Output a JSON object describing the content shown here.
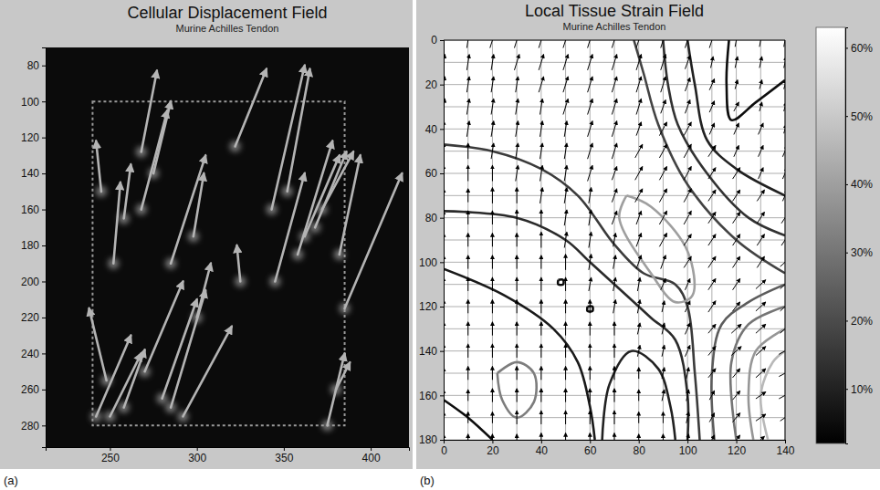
{
  "chart_data": [
    {
      "type": "quiver",
      "title": "Cellular Displacement Field",
      "subtitle": "Murine Achilles Tendon",
      "panel_label": "(a)",
      "xlim": [
        213,
        422
      ],
      "ylim": [
        70,
        292
      ],
      "xticks": [
        250,
        300,
        350,
        400
      ],
      "yticks": [
        80,
        100,
        120,
        140,
        160,
        180,
        200,
        220,
        240,
        260,
        280
      ],
      "color": "#b4b4b4",
      "roi": {
        "x": [
          240,
          385
        ],
        "y": [
          100,
          280
        ]
      },
      "arrows": {
        "x": [
          245,
          252,
          258,
          268,
          275,
          268,
          285,
          298,
          322,
          343,
          352,
          358,
          362,
          368,
          372,
          382,
          242,
          250,
          248,
          258,
          270,
          280,
          285,
          292,
          300,
          325,
          345,
          385,
          375,
          380
        ],
        "y": [
          150,
          190,
          165,
          160,
          140,
          128,
          190,
          175,
          125,
          160,
          150,
          185,
          175,
          170,
          160,
          185,
          275,
          275,
          255,
          270,
          250,
          265,
          270,
          275,
          220,
          200,
          200,
          215,
          280,
          260
        ],
        "u": [
          -3,
          4,
          4,
          15,
          10,
          9,
          20,
          6,
          18,
          19,
          13,
          20,
          20,
          18,
          18,
          12,
          20,
          18,
          -10,
          12,
          22,
          20,
          20,
          28,
          8,
          -2,
          17,
          33,
          10,
          8
        ],
        "v": [
          -28,
          -45,
          -30,
          -55,
          -40,
          -45,
          -60,
          -35,
          -43,
          -80,
          -68,
          -63,
          -45,
          -42,
          -32,
          -55,
          -45,
          -35,
          -40,
          -32,
          -50,
          -55,
          -65,
          -50,
          -30,
          -20,
          -60,
          -75,
          -40,
          -15
        ]
      }
    },
    {
      "type": "contour",
      "title": "Local Tissue Strain Field",
      "subtitle": "Murine Achilles Tendon",
      "panel_label": "(b)",
      "xlim": [
        0,
        140
      ],
      "ylim": [
        0,
        180
      ],
      "xticks": [
        0,
        20,
        40,
        60,
        80,
        100,
        120,
        140
      ],
      "yticks": [
        0,
        20,
        40,
        60,
        80,
        100,
        120,
        140,
        160,
        180
      ],
      "grid": true,
      "contours": [
        {
          "level": 5,
          "x": [
            117,
            116,
            118,
            128,
            140
          ],
          "y": [
            0,
            20,
            36,
            28,
            18
          ]
        },
        {
          "level": 10,
          "x": [
            100,
            103,
            108,
            120,
            140
          ],
          "y": [
            0,
            20,
            45,
            58,
            70
          ]
        },
        {
          "level": 14,
          "x": [
            90,
            92,
            96,
            108,
            125,
            140
          ],
          "y": [
            0,
            20,
            38,
            60,
            80,
            88
          ]
        },
        {
          "level": 18,
          "x": [
            78,
            82,
            88,
            100,
            120,
            140
          ],
          "y": [
            0,
            15,
            38,
            65,
            90,
            105
          ]
        },
        {
          "level": 16,
          "x": [
            0,
            20,
            40,
            55,
            70,
            82,
            95,
            100,
            103,
            105
          ],
          "y": [
            47,
            50,
            58,
            70,
            92,
            105,
            110,
            120,
            150,
            180
          ]
        },
        {
          "level": 12,
          "x": [
            0,
            30,
            50,
            60,
            75,
            85,
            95,
            100,
            100
          ],
          "y": [
            77,
            80,
            90,
            100,
            115,
            125,
            135,
            160,
            180
          ]
        },
        {
          "level": 8,
          "x": [
            0,
            25,
            45,
            55,
            60,
            62
          ],
          "y": [
            103,
            115,
            130,
            145,
            165,
            180
          ]
        },
        {
          "level": 10,
          "x": [
            65,
            68,
            77,
            88,
            93,
            95
          ],
          "y": [
            180,
            155,
            140,
            148,
            165,
            180
          ]
        },
        {
          "level": 5,
          "x": [
            0,
            10,
            20
          ],
          "y": [
            162,
            170,
            180
          ]
        },
        {
          "level": 40,
          "x": [
            75,
            85,
            100,
            102,
            95,
            85,
            72,
            75
          ],
          "y": [
            70,
            75,
            95,
            115,
            118,
            105,
            80,
            70
          ]
        },
        {
          "level": 32,
          "x": [
            22,
            30,
            37,
            37,
            30,
            24,
            22
          ],
          "y": [
            150,
            145,
            150,
            163,
            170,
            162,
            150
          ]
        },
        {
          "level": 24,
          "x": [
            111,
            110,
            114,
            125,
            140
          ],
          "y": [
            180,
            150,
            128,
            118,
            110
          ]
        },
        {
          "level": 30,
          "x": [
            120,
            118,
            125,
            140
          ],
          "y": [
            180,
            145,
            128,
            120
          ]
        },
        {
          "level": 38,
          "x": [
            127,
            125,
            128,
            140
          ],
          "y": [
            180,
            160,
            140,
            130
          ]
        },
        {
          "level": 46,
          "x": [
            133,
            130,
            135,
            140
          ],
          "y": [
            180,
            160,
            145,
            140
          ]
        },
        {
          "level": 5,
          "x": [
            47,
            49,
            49,
            47,
            47
          ],
          "y": [
            108,
            108,
            110,
            110,
            108
          ]
        },
        {
          "level": 5,
          "x": [
            59,
            61,
            61,
            59,
            59
          ],
          "y": [
            120,
            120,
            122,
            122,
            120
          ]
        }
      ],
      "quiver": {
        "x": [
          0,
          10,
          20,
          30,
          40,
          50,
          60,
          70,
          80,
          90,
          100,
          110,
          120,
          130,
          140
        ],
        "y": [
          0,
          10,
          20,
          30,
          40,
          50,
          60,
          70,
          80,
          90,
          100,
          110,
          120,
          130,
          140,
          150,
          160,
          170,
          180
        ],
        "u": [
          [
            1,
            1,
            2,
            2,
            2,
            2,
            2,
            2,
            2,
            2,
            2,
            2,
            1,
            1,
            1
          ],
          [
            1,
            1,
            1,
            2,
            2,
            2,
            2,
            2,
            2,
            2,
            2,
            1,
            1,
            1,
            1
          ],
          [
            1,
            1,
            1,
            1,
            2,
            2,
            2,
            2,
            2,
            2,
            2,
            2,
            1,
            1,
            1
          ],
          [
            1,
            1,
            1,
            1,
            1,
            2,
            2,
            2,
            2,
            2,
            2,
            2,
            2,
            1,
            1
          ],
          [
            0,
            1,
            1,
            1,
            1,
            1,
            2,
            2,
            2,
            3,
            3,
            2,
            2,
            2,
            1
          ],
          [
            0,
            0,
            1,
            1,
            1,
            1,
            2,
            2,
            3,
            3,
            3,
            3,
            2,
            2,
            2
          ],
          [
            0,
            0,
            0,
            1,
            1,
            1,
            2,
            2,
            3,
            3,
            3,
            3,
            3,
            2,
            2
          ],
          [
            0,
            0,
            0,
            0,
            1,
            1,
            1,
            2,
            3,
            3,
            3,
            3,
            3,
            3,
            2
          ],
          [
            0,
            0,
            0,
            0,
            0,
            1,
            1,
            2,
            2,
            3,
            3,
            3,
            3,
            3,
            3
          ],
          [
            0,
            0,
            0,
            0,
            0,
            1,
            1,
            1,
            2,
            3,
            3,
            3,
            3,
            3,
            3
          ],
          [
            0,
            0,
            0,
            0,
            0,
            0,
            1,
            1,
            2,
            2,
            3,
            3,
            3,
            3,
            4
          ],
          [
            0,
            0,
            0,
            0,
            0,
            0,
            1,
            1,
            1,
            2,
            2,
            3,
            3,
            4,
            4
          ],
          [
            0,
            0,
            0,
            0,
            0,
            0,
            0,
            1,
            1,
            1,
            2,
            3,
            3,
            4,
            4
          ],
          [
            0,
            0,
            0,
            0,
            0,
            0,
            0,
            0,
            1,
            1,
            2,
            3,
            4,
            4,
            4
          ],
          [
            0,
            0,
            0,
            0,
            0,
            0,
            0,
            0,
            1,
            1,
            2,
            3,
            4,
            4,
            5
          ],
          [
            0,
            0,
            0,
            0,
            0,
            0,
            0,
            0,
            0,
            1,
            1,
            3,
            3,
            4,
            5
          ],
          [
            0,
            0,
            0,
            0,
            0,
            0,
            0,
            0,
            0,
            1,
            1,
            2,
            3,
            4,
            5
          ],
          [
            0,
            0,
            0,
            0,
            0,
            0,
            0,
            0,
            0,
            0,
            1,
            2,
            3,
            4,
            4
          ],
          [
            0,
            0,
            0,
            0,
            0,
            0,
            0,
            0,
            0,
            0,
            1,
            2,
            3,
            3,
            4
          ]
        ],
        "v": [
          [
            -7,
            -7,
            -7,
            -7,
            -7,
            -7,
            -7,
            -7,
            -7,
            -7,
            -7,
            -7,
            -6,
            -6,
            -6
          ],
          [
            -7,
            -7,
            -7,
            -7,
            -7,
            -7,
            -7,
            -7,
            -7,
            -7,
            -6,
            -5,
            -5,
            -5,
            -5
          ],
          [
            -7,
            -7,
            -7,
            -7,
            -7,
            -7,
            -7,
            -7,
            -7,
            -7,
            -6,
            -5,
            -4,
            -4,
            -4
          ],
          [
            -7,
            -7,
            -7,
            -7,
            -7,
            -7,
            -7,
            -7,
            -7,
            -6,
            -6,
            -5,
            -4,
            -4,
            -4
          ],
          [
            -7,
            -7,
            -7,
            -7,
            -7,
            -7,
            -7,
            -7,
            -6,
            -6,
            -6,
            -5,
            -5,
            -5,
            -4
          ],
          [
            -7,
            -7,
            -7,
            -7,
            -7,
            -7,
            -7,
            -7,
            -6,
            -6,
            -6,
            -5,
            -5,
            -5,
            -5
          ],
          [
            -7,
            -7,
            -7,
            -7,
            -7,
            -7,
            -7,
            -6,
            -6,
            -6,
            -6,
            -5,
            -5,
            -5,
            -5
          ],
          [
            -6,
            -6,
            -7,
            -7,
            -7,
            -7,
            -7,
            -6,
            -6,
            -6,
            -6,
            -5,
            -5,
            -5,
            -5
          ],
          [
            -6,
            -6,
            -6,
            -7,
            -7,
            -7,
            -7,
            -6,
            -6,
            -6,
            -6,
            -5,
            -5,
            -5,
            -5
          ],
          [
            -6,
            -6,
            -6,
            -6,
            -7,
            -7,
            -7,
            -6,
            -6,
            -6,
            -5,
            -5,
            -5,
            -5,
            -5
          ],
          [
            -6,
            -6,
            -6,
            -6,
            -6,
            -7,
            -7,
            -6,
            -6,
            -6,
            -5,
            -5,
            -5,
            -5,
            -4
          ],
          [
            -6,
            -6,
            -6,
            -6,
            -6,
            -6,
            -6,
            -6,
            -6,
            -5,
            -5,
            -5,
            -5,
            -4,
            -4
          ],
          [
            -6,
            -6,
            -6,
            -6,
            -6,
            -6,
            -6,
            -6,
            -6,
            -5,
            -5,
            -5,
            -4,
            -4,
            -4
          ],
          [
            -6,
            -6,
            -6,
            -6,
            -6,
            -6,
            -6,
            -6,
            -5,
            -5,
            -5,
            -4,
            -4,
            -4,
            -4
          ],
          [
            -6,
            -6,
            -6,
            -6,
            -6,
            -6,
            -6,
            -6,
            -5,
            -5,
            -5,
            -4,
            -4,
            -4,
            -3
          ],
          [
            -5,
            -6,
            -6,
            -6,
            -6,
            -6,
            -6,
            -6,
            -5,
            -5,
            -5,
            -4,
            -4,
            -4,
            -3
          ],
          [
            -5,
            -5,
            -6,
            -6,
            -6,
            -6,
            -6,
            -6,
            -5,
            -5,
            -5,
            -4,
            -4,
            -3,
            -3
          ],
          [
            -5,
            -5,
            -5,
            -6,
            -6,
            -6,
            -6,
            -6,
            -5,
            -5,
            -5,
            -4,
            -4,
            -3,
            -3
          ],
          [
            -5,
            -5,
            -5,
            -5,
            -6,
            -6,
            -6,
            -6,
            -5,
            -5,
            -5,
            -4,
            -4,
            -3,
            -3
          ]
        ]
      },
      "colorbar": {
        "lim": [
          2,
          63
        ],
        "ticks": [
          {
            "value": 10,
            "label": "10%"
          },
          {
            "value": 20,
            "label": "20%"
          },
          {
            "value": 30,
            "label": "30%"
          },
          {
            "value": 40,
            "label": "40%"
          },
          {
            "value": 50,
            "label": "50%"
          },
          {
            "value": 60,
            "label": "60%"
          }
        ]
      }
    }
  ]
}
